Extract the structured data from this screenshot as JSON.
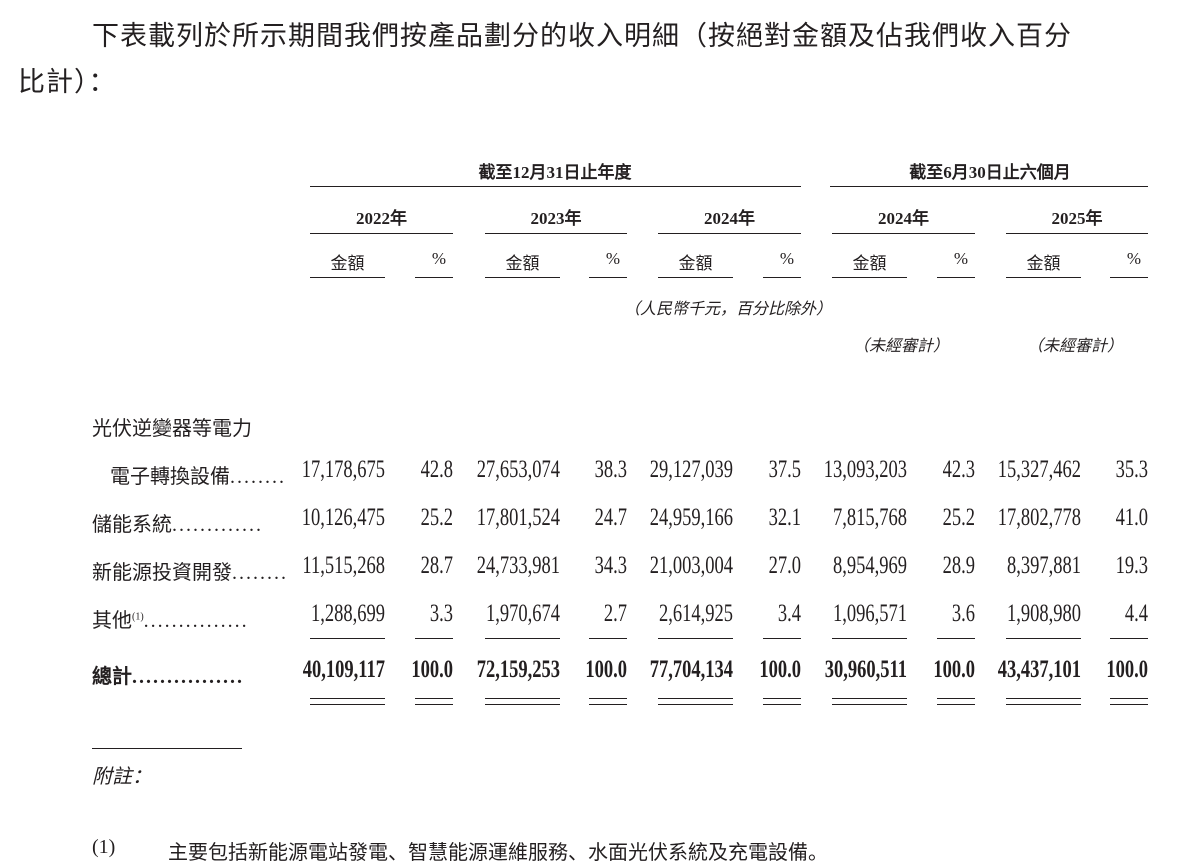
{
  "intro": {
    "line1": "下表載列於所示期間我們按產品劃分的收入明細（按絕對金額及佔我們收入百分",
    "line2": "比計）："
  },
  "table": {
    "group_headers": [
      "截至12月31日止年度",
      "截至6月30日止六個月"
    ],
    "years": [
      "2022年",
      "2023年",
      "2024年",
      "2024年",
      "2025年"
    ],
    "amount_label": "金額",
    "pct_label": "%",
    "unit_note": "（人民幣千元，百分比除外）",
    "unaudited_notes": [
      "（未經審計）",
      "（未經審計）"
    ],
    "rows": [
      {
        "label_line1": "光伏逆變器等電力",
        "label": "電子轉換設備",
        "dots": "........",
        "values": [
          "17,178,675",
          "42.8",
          "27,653,074",
          "38.3",
          "29,127,039",
          "37.5",
          "13,093,203",
          "42.3",
          "15,327,462",
          "35.3"
        ]
      },
      {
        "label": "儲能系統",
        "dots": ".............",
        "values": [
          "10,126,475",
          "25.2",
          "17,801,524",
          "24.7",
          "24,959,166",
          "32.1",
          "7,815,768",
          "25.2",
          "17,802,778",
          "41.0"
        ]
      },
      {
        "label": "新能源投資開發",
        "dots": "........",
        "values": [
          "11,515,268",
          "28.7",
          "24,733,981",
          "34.3",
          "21,003,004",
          "27.0",
          "8,954,969",
          "28.9",
          "8,397,881",
          "19.3"
        ]
      },
      {
        "label": "其他",
        "sup": "(1)",
        "dots": "...............",
        "values": [
          "1,288,699",
          "3.3",
          "1,970,674",
          "2.7",
          "2,614,925",
          "3.4",
          "1,096,571",
          "3.6",
          "1,908,980",
          "4.4"
        ]
      },
      {
        "label": "總計",
        "dots": "................",
        "values": [
          "40,109,117",
          "100.0",
          "72,159,253",
          "100.0",
          "77,704,134",
          "100.0",
          "30,960,511",
          "100.0",
          "43,437,101",
          "100.0"
        ],
        "bold": true
      }
    ]
  },
  "notes": {
    "heading": "附註：",
    "items": [
      {
        "marker": "(1)",
        "text": "主要包括新能源電站發電、智慧能源運維服務、水面光伏系統及充電設備。"
      }
    ]
  }
}
